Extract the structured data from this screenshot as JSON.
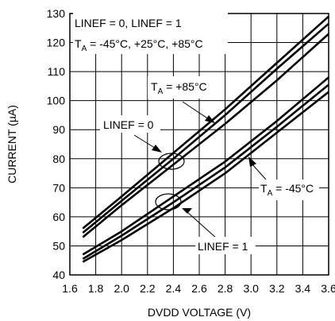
{
  "chart_data": {
    "type": "line",
    "title": "",
    "xlabel": "DVDD VOLTAGE (V)",
    "ylabel": "CURRENT (µA)",
    "xlim": [
      1.6,
      3.6
    ],
    "ylim": [
      40,
      130
    ],
    "xticks": [
      "1.6",
      "1.8",
      "2.0",
      "2.2",
      "2.4",
      "2.6",
      "2.8",
      "3.0",
      "3.2",
      "3.4",
      "3.6"
    ],
    "yticks": [
      "40",
      "50",
      "60",
      "70",
      "80",
      "90",
      "100",
      "110",
      "120",
      "130"
    ],
    "grid": true,
    "series": [
      {
        "group": "LINEF = 0",
        "x": [
          1.7,
          2.0,
          2.4,
          2.8,
          3.2,
          3.6
        ],
        "y": [
          56,
          67,
          82,
          97,
          113,
          129
        ]
      },
      {
        "group": "LINEF = 0",
        "x": [
          1.7,
          2.0,
          2.4,
          2.8,
          3.2,
          3.6
        ],
        "y": [
          54.5,
          65.5,
          80,
          95,
          111,
          126.5
        ]
      },
      {
        "group": "LINEF = 0",
        "x": [
          1.7,
          2.0,
          2.4,
          2.8,
          3.2,
          3.6
        ],
        "y": [
          53,
          64,
          78,
          92,
          107,
          123
        ]
      },
      {
        "group": "LINEF = 1",
        "x": [
          1.7,
          2.0,
          2.4,
          2.8,
          3.2,
          3.6
        ],
        "y": [
          47,
          55,
          67,
          79,
          93,
          108
        ]
      },
      {
        "group": "LINEF = 1",
        "x": [
          1.7,
          2.0,
          2.4,
          2.8,
          3.2,
          3.6
        ],
        "y": [
          45.5,
          53.5,
          65,
          77,
          91,
          105.5
        ]
      },
      {
        "group": "LINEF = 1",
        "x": [
          1.7,
          2.0,
          2.4,
          2.8,
          3.2,
          3.6
        ],
        "y": [
          44.5,
          52,
          63,
          75,
          89,
          103
        ]
      }
    ],
    "annotations": {
      "conditions_line1": "LINEF = 0, LINEF = 1",
      "conditions_line2_prefix": "T",
      "conditions_line2_sub": "A",
      "conditions_line2_rest": " = -45°C, +25°C, +85°C",
      "hot_prefix": "T",
      "hot_sub": "A",
      "hot_rest": " = +85°C",
      "cold_prefix": "T",
      "cold_sub": "A",
      "cold_rest": " = -45°C",
      "linef0": "LINEF = 0",
      "linef1": "LINEF = 1"
    }
  }
}
